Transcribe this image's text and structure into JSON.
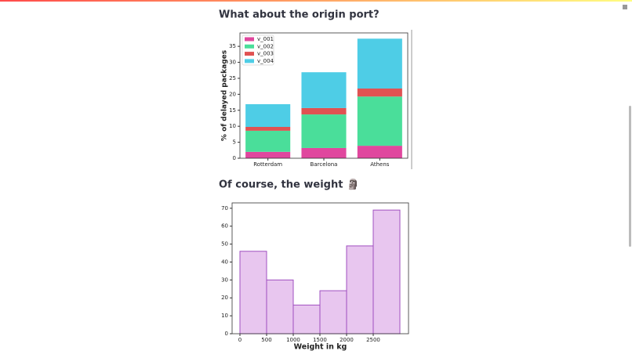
{
  "headings": [
    "What about the origin port?",
    "Of course, the weight 🗿"
  ],
  "chart_data": [
    {
      "type": "bar",
      "stacked": true,
      "ylabel": "% of delayed packages",
      "categories": [
        "Rotterdam",
        "Barcelona",
        "Athens"
      ],
      "series": [
        {
          "name": "v_001",
          "color": "#e0479e",
          "values": [
            2.0,
            3.2,
            3.9
          ]
        },
        {
          "name": "v_002",
          "color": "#4ade9a",
          "values": [
            6.6,
            10.5,
            15.4
          ]
        },
        {
          "name": "v_003",
          "color": "#e05252",
          "values": [
            1.2,
            2.0,
            2.5
          ]
        },
        {
          "name": "v_004",
          "color": "#4ecde6",
          "values": [
            7.1,
            11.2,
            15.6
          ]
        }
      ],
      "ylim": [
        0,
        39.2
      ],
      "yticks": [
        0,
        5,
        10,
        15,
        20,
        25,
        30,
        35
      ],
      "legend": "upper-left"
    },
    {
      "type": "histogram",
      "xlabel": "Weight in kg",
      "bins": [
        0,
        500,
        1000,
        1500,
        2000,
        2500,
        3000
      ],
      "values": [
        46,
        30,
        16,
        24,
        49,
        69
      ],
      "color": "#e8c6ef",
      "edgecolor": "#a050c0",
      "xlim": [
        -147,
        3162
      ],
      "xticks": [
        0,
        500,
        1000,
        1500,
        2000,
        2500
      ],
      "ylim": [
        0,
        73
      ],
      "yticks": [
        0,
        10,
        20,
        30,
        40,
        50,
        60,
        70
      ]
    }
  ]
}
